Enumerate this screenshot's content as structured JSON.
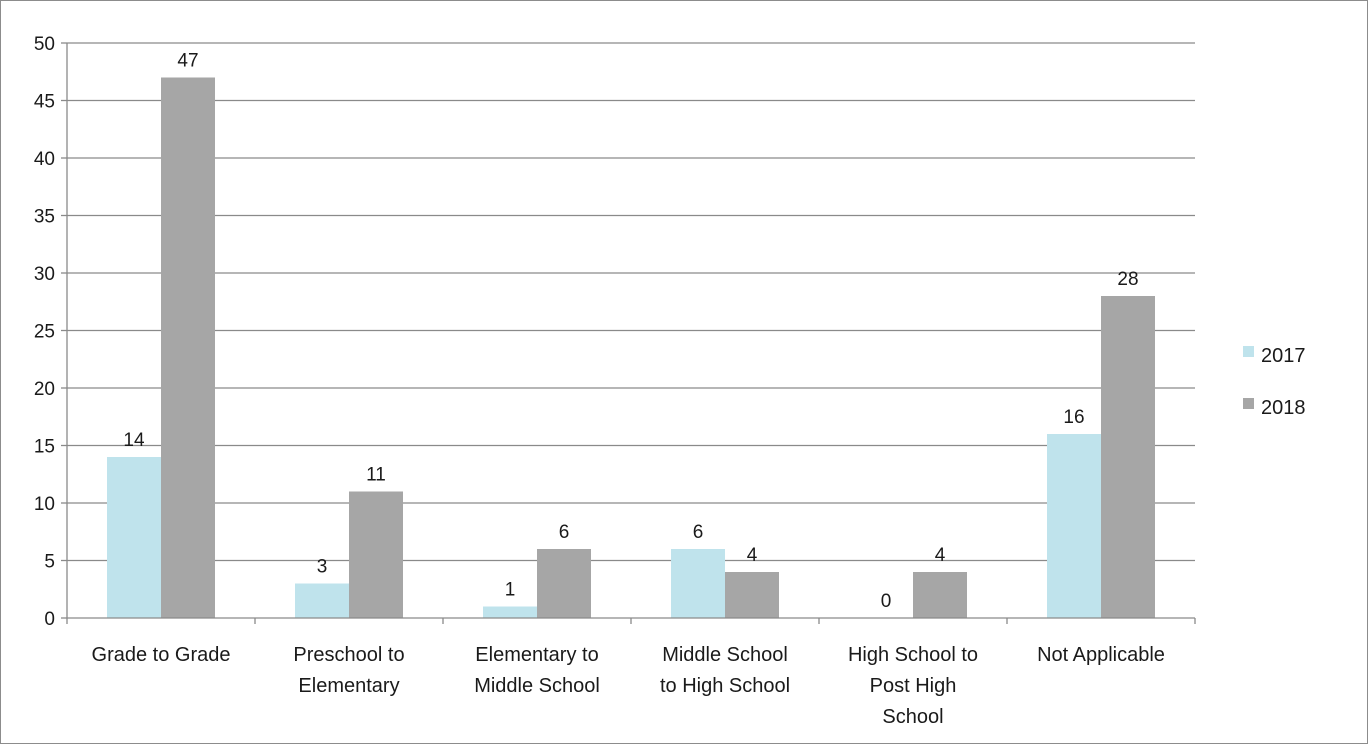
{
  "chart_data": {
    "type": "bar",
    "title": "",
    "xlabel": "",
    "ylabel": "",
    "ylim": [
      0,
      50
    ],
    "yticks": [
      0,
      5,
      10,
      15,
      20,
      25,
      30,
      35,
      40,
      45,
      50
    ],
    "grid": true,
    "legend_position": "right",
    "categories": [
      [
        "Grade to Grade"
      ],
      [
        "Preschool to",
        "Elementary"
      ],
      [
        "Elementary to",
        "Middle School"
      ],
      [
        "Middle School",
        "to High School"
      ],
      [
        "High School to",
        "Post High",
        "School"
      ],
      [
        "Not Applicable"
      ]
    ],
    "series": [
      {
        "name": "2017",
        "color": "#bfe3ec",
        "values": [
          14,
          3,
          1,
          6,
          0,
          16
        ]
      },
      {
        "name": "2018",
        "color": "#a6a6a6",
        "values": [
          47,
          11,
          6,
          4,
          4,
          28
        ]
      }
    ]
  }
}
